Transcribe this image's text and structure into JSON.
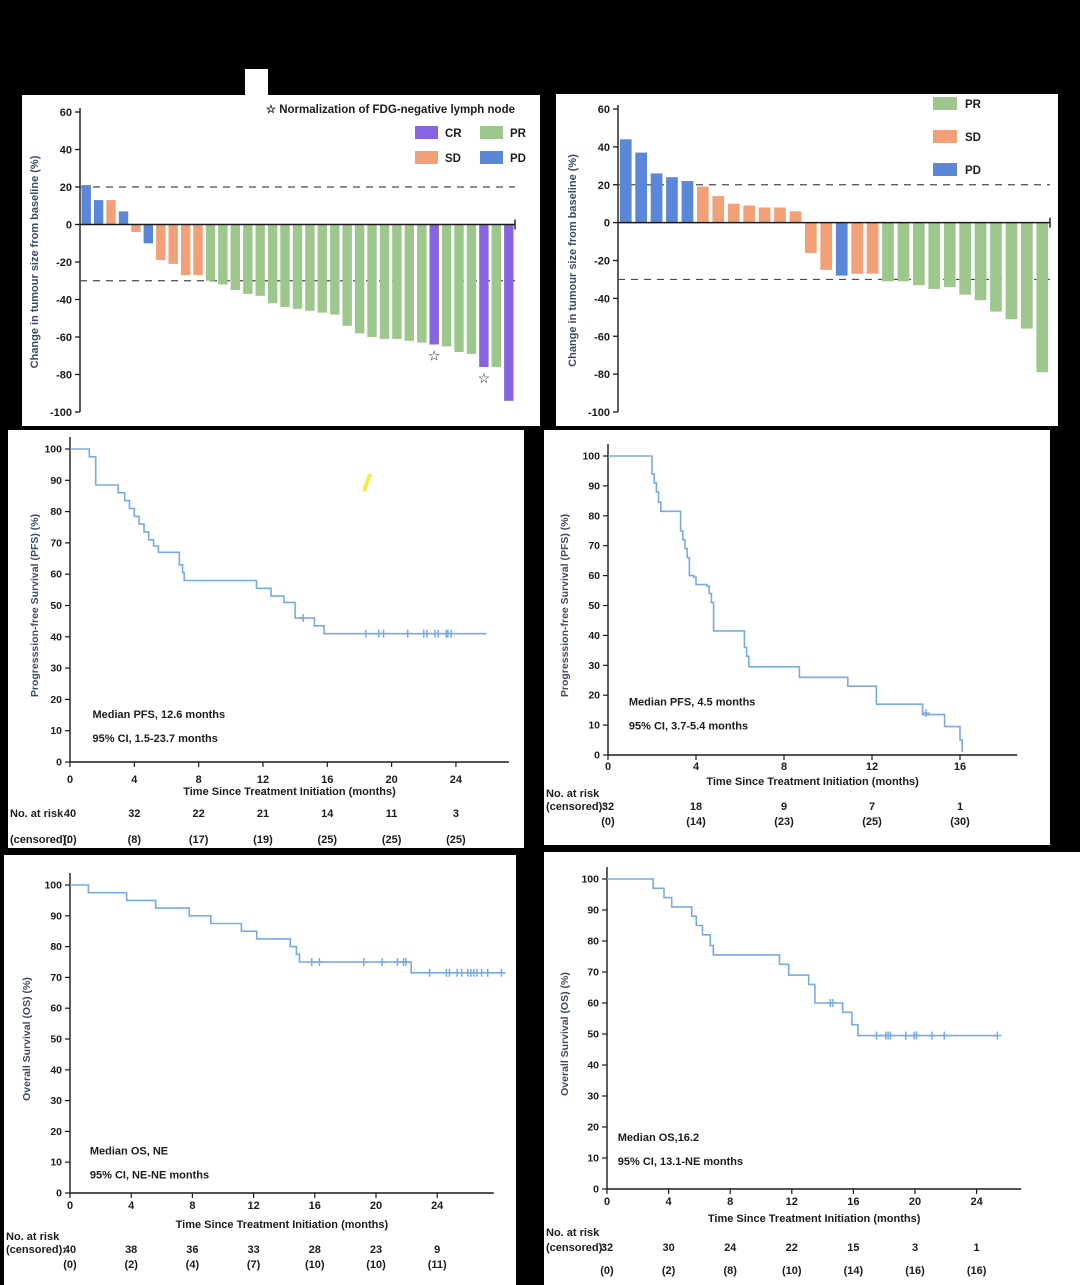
{
  "figure": {
    "background": "#000000",
    "artifacts": {
      "white_notch": "blank white tab above top-left panel",
      "yellow_pen_mark": "small yellow diagonal stroke inside left PFS panel"
    }
  },
  "colors": {
    "km_line": "#7aaae2",
    "axis": "#1a1a1a",
    "dashed": "#4a4a4a",
    "label": "#3d4a63",
    "text": "#1c1c1c",
    "yellow_mark": "#f4ee43",
    "CR": "#8765e0",
    "SD": "#f2a077",
    "PR": "#9dc78c",
    "PD": "#5b87d8"
  },
  "chart_data": [
    {
      "id": "waterfall-left",
      "type": "waterfall",
      "ylabel": "Change in tumour size from baseline (%)",
      "ylim": [
        -100,
        60
      ],
      "yticks": [
        60,
        40,
        20,
        0,
        -20,
        -40,
        -60,
        -80,
        -100
      ],
      "reference_lines": [
        20,
        -30
      ],
      "star_symbol": "☆",
      "legend_note": "Normalization of FDG-negative lymph node",
      "legend": [
        "CR",
        "PR",
        "SD",
        "PD"
      ],
      "bars": [
        {
          "value": 21,
          "response": "PD"
        },
        {
          "value": 13,
          "response": "PD"
        },
        {
          "value": 13,
          "response": "SD"
        },
        {
          "value": 7,
          "response": "PD"
        },
        {
          "value": -4,
          "response": "SD"
        },
        {
          "value": -10,
          "response": "PD"
        },
        {
          "value": -19,
          "response": "SD"
        },
        {
          "value": -21,
          "response": "SD"
        },
        {
          "value": -27,
          "response": "SD"
        },
        {
          "value": -27,
          "response": "SD"
        },
        {
          "value": -30,
          "response": "PR"
        },
        {
          "value": -32,
          "response": "PR"
        },
        {
          "value": -35,
          "response": "PR"
        },
        {
          "value": -37,
          "response": "PR"
        },
        {
          "value": -38,
          "response": "PR"
        },
        {
          "value": -42,
          "response": "PR"
        },
        {
          "value": -44,
          "response": "PR"
        },
        {
          "value": -45,
          "response": "PR"
        },
        {
          "value": -46,
          "response": "PR"
        },
        {
          "value": -47,
          "response": "PR"
        },
        {
          "value": -48,
          "response": "PR"
        },
        {
          "value": -54,
          "response": "PR"
        },
        {
          "value": -58,
          "response": "PR"
        },
        {
          "value": -60,
          "response": "PR"
        },
        {
          "value": -61,
          "response": "PR"
        },
        {
          "value": -61,
          "response": "PR"
        },
        {
          "value": -62,
          "response": "PR"
        },
        {
          "value": -63,
          "response": "PR"
        },
        {
          "value": -64,
          "response": "CR",
          "star": true
        },
        {
          "value": -65,
          "response": "PR"
        },
        {
          "value": -68,
          "response": "PR"
        },
        {
          "value": -69,
          "response": "PR"
        },
        {
          "value": -76,
          "response": "CR",
          "star": true
        },
        {
          "value": -76,
          "response": "PR"
        },
        {
          "value": -94,
          "response": "CR"
        }
      ]
    },
    {
      "id": "waterfall-right",
      "type": "waterfall",
      "ylabel": "Change in tumour size from baseline (%)",
      "ylim": [
        -100,
        60
      ],
      "yticks": [
        60,
        40,
        20,
        0,
        -20,
        -40,
        -60,
        -80,
        -100
      ],
      "reference_lines": [
        20,
        -30
      ],
      "star_symbol": "☆",
      "legend": [
        "PR",
        "SD",
        "PD"
      ],
      "bars": [
        {
          "value": 44,
          "response": "PD"
        },
        {
          "value": 37,
          "response": "PD"
        },
        {
          "value": 26,
          "response": "PD"
        },
        {
          "value": 24,
          "response": "PD"
        },
        {
          "value": 22,
          "response": "PD"
        },
        {
          "value": 19,
          "response": "SD"
        },
        {
          "value": 14,
          "response": "SD"
        },
        {
          "value": 10,
          "response": "SD"
        },
        {
          "value": 9,
          "response": "SD"
        },
        {
          "value": 8,
          "response": "SD"
        },
        {
          "value": 8,
          "response": "SD"
        },
        {
          "value": 6,
          "response": "SD"
        },
        {
          "value": -16,
          "response": "SD"
        },
        {
          "value": -25,
          "response": "SD"
        },
        {
          "value": -28,
          "response": "PD"
        },
        {
          "value": -27,
          "response": "SD"
        },
        {
          "value": -27,
          "response": "SD"
        },
        {
          "value": -31,
          "response": "PR"
        },
        {
          "value": -31,
          "response": "PR"
        },
        {
          "value": -33,
          "response": "PR"
        },
        {
          "value": -35,
          "response": "PR"
        },
        {
          "value": -34,
          "response": "PR"
        },
        {
          "value": -38,
          "response": "PR"
        },
        {
          "value": -41,
          "response": "PR"
        },
        {
          "value": -47,
          "response": "PR"
        },
        {
          "value": -51,
          "response": "PR"
        },
        {
          "value": -56,
          "response": "PR"
        },
        {
          "value": -79,
          "response": "PR"
        }
      ]
    },
    {
      "id": "pfs-left",
      "type": "km",
      "ylabel": "Progresssion-free Survival (PFS) (%)",
      "xlabel": "Time Since Treatment Initiation (months)",
      "xticks": [
        0,
        4,
        8,
        12,
        16,
        20,
        24
      ],
      "xmax": 27.3,
      "ylim": [
        0,
        100
      ],
      "annotation": [
        "Median PFS, 12.6 months",
        "95% CI, 1.5-23.7 months"
      ],
      "steps": [
        [
          0,
          100
        ],
        [
          1.2,
          100
        ],
        [
          1.2,
          97.5
        ],
        [
          1.6,
          97.5
        ],
        [
          1.6,
          88.5
        ],
        [
          3.0,
          88.5
        ],
        [
          3.0,
          86
        ],
        [
          3.4,
          86
        ],
        [
          3.4,
          83.5
        ],
        [
          3.7,
          83.5
        ],
        [
          3.7,
          81
        ],
        [
          4.0,
          81
        ],
        [
          4.0,
          78.5
        ],
        [
          4.3,
          78.5
        ],
        [
          4.3,
          76
        ],
        [
          4.6,
          76
        ],
        [
          4.6,
          73.5
        ],
        [
          4.9,
          73.5
        ],
        [
          4.9,
          71
        ],
        [
          5.2,
          71
        ],
        [
          5.2,
          69
        ],
        [
          5.5,
          69
        ],
        [
          5.5,
          67
        ],
        [
          6.8,
          67
        ],
        [
          6.8,
          63
        ],
        [
          7.0,
          63
        ],
        [
          7.0,
          60.5
        ],
        [
          7.1,
          60.5
        ],
        [
          7.1,
          58
        ],
        [
          11.6,
          58
        ],
        [
          11.6,
          55.5
        ],
        [
          12.5,
          55.5
        ],
        [
          12.5,
          53
        ],
        [
          13.3,
          53
        ],
        [
          13.3,
          51
        ],
        [
          14.0,
          51
        ],
        [
          14.0,
          46
        ],
        [
          15.2,
          46
        ],
        [
          15.2,
          43.5
        ],
        [
          15.8,
          43.5
        ],
        [
          15.8,
          41
        ],
        [
          25.9,
          41
        ]
      ],
      "censors": [
        [
          14.5,
          46
        ],
        [
          18.4,
          41
        ],
        [
          19.2,
          41
        ],
        [
          19.5,
          41
        ],
        [
          21.0,
          41
        ],
        [
          22.0,
          41
        ],
        [
          22.2,
          41
        ],
        [
          22.7,
          41
        ],
        [
          22.9,
          41
        ],
        [
          23.4,
          41
        ],
        [
          23.5,
          41
        ],
        [
          23.7,
          41
        ]
      ],
      "risk_table": {
        "row_label_1": "No. at risk",
        "row_label_2": "(censored):",
        "layout": "inline",
        "at_risk": [
          "40",
          "32",
          "22",
          "21",
          "14",
          "11",
          "3"
        ],
        "censored": [
          "(0)",
          "(8)",
          "(17)",
          "(19)",
          "(25)",
          "(25)",
          "(25)"
        ]
      }
    },
    {
      "id": "pfs-right",
      "type": "km",
      "ylabel": "Progresssion-free Survival (PFS) (%)",
      "xlabel": "Time Since Treatment Initiation (months)",
      "xticks": [
        0,
        4,
        8,
        12,
        16
      ],
      "xmax": 18.6,
      "ylim": [
        0,
        100
      ],
      "annotation": [
        "Median PFS, 4.5 months",
        "95% CI, 3.7-5.4 months"
      ],
      "steps": [
        [
          0,
          100
        ],
        [
          2.0,
          100
        ],
        [
          2.0,
          94
        ],
        [
          2.1,
          94
        ],
        [
          2.1,
          91
        ],
        [
          2.2,
          91
        ],
        [
          2.2,
          88
        ],
        [
          2.3,
          88
        ],
        [
          2.3,
          84.5
        ],
        [
          2.4,
          84.5
        ],
        [
          2.4,
          81.5
        ],
        [
          3.3,
          81.5
        ],
        [
          3.3,
          75
        ],
        [
          3.4,
          75
        ],
        [
          3.4,
          72
        ],
        [
          3.5,
          72
        ],
        [
          3.5,
          69
        ],
        [
          3.6,
          69
        ],
        [
          3.6,
          66
        ],
        [
          3.7,
          66
        ],
        [
          3.7,
          60
        ],
        [
          3.9,
          60
        ],
        [
          3.9,
          59.5
        ],
        [
          4.0,
          59.5
        ],
        [
          4.0,
          57
        ],
        [
          4.5,
          57
        ],
        [
          4.5,
          56.5
        ],
        [
          4.6,
          56.5
        ],
        [
          4.6,
          54
        ],
        [
          4.7,
          54
        ],
        [
          4.7,
          51
        ],
        [
          4.8,
          51
        ],
        [
          4.8,
          41.5
        ],
        [
          6.2,
          41.5
        ],
        [
          6.2,
          36
        ],
        [
          6.3,
          36
        ],
        [
          6.3,
          33
        ],
        [
          6.4,
          33
        ],
        [
          6.4,
          29.5
        ],
        [
          8.7,
          29.5
        ],
        [
          8.7,
          26
        ],
        [
          10.9,
          26
        ],
        [
          10.9,
          23
        ],
        [
          12.2,
          23
        ],
        [
          12.2,
          17
        ],
        [
          14.3,
          17
        ],
        [
          14.3,
          13.5
        ],
        [
          15.3,
          13.5
        ],
        [
          15.3,
          9.5
        ],
        [
          16.0,
          9.5
        ],
        [
          16.0,
          5
        ],
        [
          16.1,
          5
        ],
        [
          16.1,
          1
        ]
      ],
      "censors": [
        [
          14.45,
          14
        ]
      ],
      "risk_table": {
        "row_label_1": "No. at risk",
        "row_label_2": "(censored):",
        "layout": "stacked",
        "at_risk": [
          "32",
          "18",
          "9",
          "7",
          "1"
        ],
        "censored": [
          "(0)",
          "(14)",
          "(23)",
          "(25)",
          "(30)"
        ]
      }
    },
    {
      "id": "os-left",
      "type": "km",
      "ylabel": "Overall Survival (OS) (%)",
      "xlabel": "Time Since Treatment Initiation (months)",
      "xticks": [
        0,
        4,
        8,
        12,
        16,
        20,
        24
      ],
      "xmax": 27.7,
      "ylim": [
        0,
        100
      ],
      "annotation": [
        "Median OS, NE",
        "95% CI, NE-NE months"
      ],
      "steps": [
        [
          0,
          100
        ],
        [
          1.2,
          100
        ],
        [
          1.2,
          97.5
        ],
        [
          3.7,
          97.5
        ],
        [
          3.7,
          95
        ],
        [
          5.6,
          95
        ],
        [
          5.6,
          92.5
        ],
        [
          7.8,
          92.5
        ],
        [
          7.8,
          90
        ],
        [
          9.2,
          90
        ],
        [
          9.2,
          87.5
        ],
        [
          11.2,
          87.5
        ],
        [
          11.2,
          85
        ],
        [
          12.2,
          85
        ],
        [
          12.2,
          82.5
        ],
        [
          14.4,
          82.5
        ],
        [
          14.4,
          80
        ],
        [
          14.8,
          80
        ],
        [
          14.8,
          77.5
        ],
        [
          15.0,
          77.5
        ],
        [
          15.0,
          75
        ],
        [
          22.3,
          75
        ],
        [
          22.3,
          71.5
        ],
        [
          28.4,
          71.5
        ]
      ],
      "censors": [
        [
          15.8,
          75
        ],
        [
          16.3,
          75
        ],
        [
          19.2,
          75
        ],
        [
          20.4,
          75
        ],
        [
          21.4,
          75
        ],
        [
          21.8,
          75
        ],
        [
          21.95,
          75
        ],
        [
          23.5,
          71.5
        ],
        [
          24.6,
          71.5
        ],
        [
          24.8,
          71.5
        ],
        [
          25.3,
          71.5
        ],
        [
          25.6,
          71.5
        ],
        [
          26.0,
          71.5
        ],
        [
          26.2,
          71.5
        ],
        [
          26.4,
          71.5
        ],
        [
          26.6,
          71.5
        ],
        [
          26.9,
          71.5
        ],
        [
          27.3,
          71.5
        ],
        [
          28.2,
          71.5
        ]
      ],
      "risk_table": {
        "row_label_1": "No. at risk",
        "row_label_2": "(censored):",
        "layout": "stacked",
        "at_risk": [
          "40",
          "38",
          "36",
          "33",
          "28",
          "23",
          "9"
        ],
        "censored": [
          "(0)",
          "(2)",
          "(4)",
          "(7)",
          "(10)",
          "(10)",
          "(11)"
        ]
      }
    },
    {
      "id": "os-right",
      "type": "km",
      "ylabel": "Overall Survival (OS) (%)",
      "xlabel": "Time Since Treatment Initiation (months)",
      "xticks": [
        0,
        4,
        8,
        12,
        16,
        20,
        24
      ],
      "xmax": 26.9,
      "ylim": [
        0,
        100
      ],
      "annotation": [
        "Median OS,16.2",
        "95% CI, 13.1-NE months"
      ],
      "steps": [
        [
          0,
          100
        ],
        [
          3.0,
          100
        ],
        [
          3.0,
          97
        ],
        [
          3.7,
          97
        ],
        [
          3.7,
          94
        ],
        [
          4.2,
          94
        ],
        [
          4.2,
          91
        ],
        [
          5.5,
          91
        ],
        [
          5.5,
          88
        ],
        [
          5.8,
          88
        ],
        [
          5.8,
          85
        ],
        [
          6.2,
          85
        ],
        [
          6.2,
          82
        ],
        [
          6.7,
          82
        ],
        [
          6.7,
          78.5
        ],
        [
          6.9,
          78.5
        ],
        [
          6.9,
          75.5
        ],
        [
          11.2,
          75.5
        ],
        [
          11.2,
          72.5
        ],
        [
          11.8,
          72.5
        ],
        [
          11.8,
          69
        ],
        [
          13.1,
          69
        ],
        [
          13.1,
          66
        ],
        [
          13.5,
          66
        ],
        [
          13.5,
          60
        ],
        [
          15.3,
          60
        ],
        [
          15.3,
          57
        ],
        [
          15.9,
          57
        ],
        [
          15.9,
          53
        ],
        [
          16.3,
          53
        ],
        [
          16.3,
          49.5
        ],
        [
          25.4,
          49.5
        ]
      ],
      "censors": [
        [
          14.5,
          60
        ],
        [
          14.65,
          60
        ],
        [
          17.5,
          49.5
        ],
        [
          18.1,
          49.5
        ],
        [
          18.25,
          49.5
        ],
        [
          18.4,
          49.5
        ],
        [
          19.4,
          49.5
        ],
        [
          19.95,
          49.5
        ],
        [
          20.1,
          49.5
        ],
        [
          21.1,
          49.5
        ],
        [
          21.9,
          49.5
        ],
        [
          25.35,
          49.5
        ]
      ],
      "risk_table": {
        "row_label_1": "No. at risk",
        "row_label_2": "(censored):",
        "layout": "stacked",
        "at_risk": [
          "32",
          "30",
          "24",
          "22",
          "15",
          "3",
          "1"
        ],
        "censored": [
          "(0)",
          "(2)",
          "(8)",
          "(10)",
          "(14)",
          "(16)",
          "(16)"
        ]
      }
    }
  ]
}
